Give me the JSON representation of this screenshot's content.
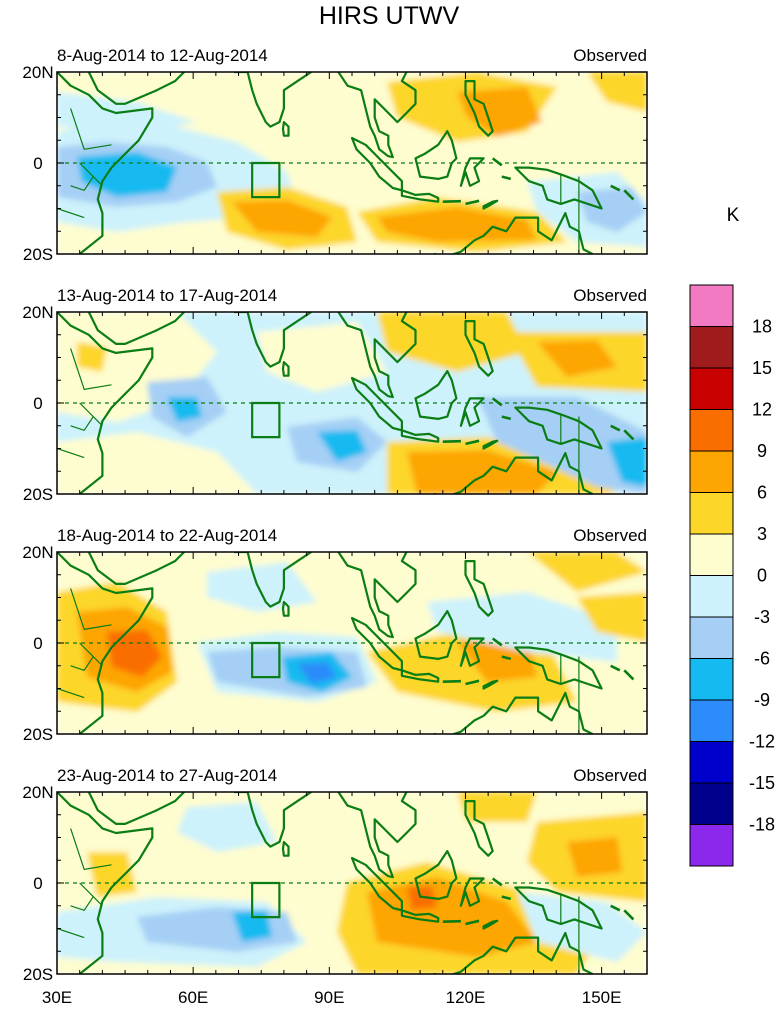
{
  "title": "HIRS UTWV",
  "units": "K",
  "panels": [
    {
      "period": "8-Aug-2014 to 12-Aug-2014",
      "tag": "Observed"
    },
    {
      "period": "13-Aug-2014 to 17-Aug-2014",
      "tag": "Observed"
    },
    {
      "period": "18-Aug-2014 to 22-Aug-2014",
      "tag": "Observed"
    },
    {
      "period": "23-Aug-2014 to 27-Aug-2014",
      "tag": "Observed"
    }
  ],
  "lat_labels": [
    "20N",
    "0",
    "20S"
  ],
  "lon_labels": [
    "30E",
    "60E",
    "90E",
    "120E",
    "150E"
  ],
  "colorbar": {
    "labels": [
      "18",
      "15",
      "12",
      "9",
      "6",
      "3",
      "0",
      "-3",
      "-6",
      "-9",
      "-12",
      "-15",
      "-18"
    ],
    "colors": [
      "#f27ac2",
      "#a01c1c",
      "#c80000",
      "#fa6e00",
      "#fda500",
      "#fdd62a",
      "#fefdcf",
      "#cdf2fb",
      "#a5cff5",
      "#14baf0",
      "#2b8cfa",
      "#0000cd",
      "#00008c",
      "#8c28eb"
    ]
  },
  "palette": {
    "neutral": "#fefdcf",
    "light_pos": "#fdd62a",
    "mid_pos": "#fda500",
    "strong_pos": "#fa6e00",
    "light_neg": "#cdf2fb",
    "mid_neg": "#a5cff5",
    "strong_neg": "#14baf0",
    "deep_neg": "#2b8cfa",
    "coast": "#0a7d14"
  }
}
